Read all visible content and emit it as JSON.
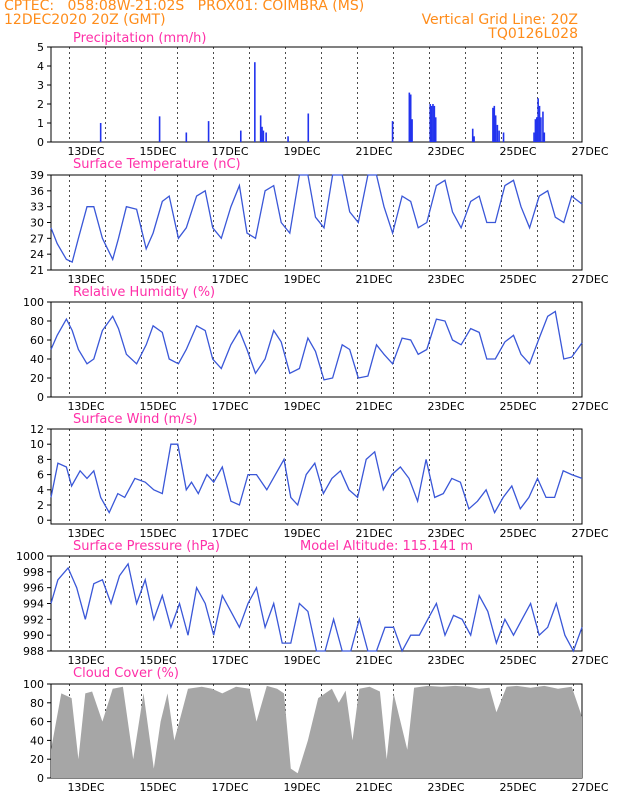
{
  "header": {
    "left1": "CPTEC:   058:08W-21:02S   PROX01: COIMBRA (MS)",
    "left2": "12DEC2020 20Z (GMT)",
    "right2": "Vertical Grid Line: 20Z",
    "right3": "TQ0126L028"
  },
  "colors": {
    "header": "#ff8c1a",
    "panel_title": "#ff2fa8",
    "series": "#3a57d8",
    "bars": "#2233ee",
    "cloud": "#a6a6a6"
  },
  "chart_data": [
    {
      "id": "precip",
      "type": "bar",
      "title": "Precipitation (mm/h)",
      "xlim": [
        0,
        15.5
      ],
      "ylim": [
        0,
        5
      ],
      "yticks": [
        0,
        1,
        2,
        3,
        4,
        5
      ],
      "xticklabels": [
        "13DEC",
        "15DEC",
        "17DEC",
        "19DEC",
        "21DEC",
        "23DEC",
        "25DEC",
        "27DEC"
      ],
      "bars": [
        [
          1.45,
          1.0
        ],
        [
          3.17,
          1.35
        ],
        [
          3.95,
          0.5
        ],
        [
          4.6,
          1.1
        ],
        [
          5.54,
          0.6
        ],
        [
          5.95,
          4.2
        ],
        [
          6.12,
          1.4
        ],
        [
          6.16,
          0.8
        ],
        [
          6.2,
          0.6
        ],
        [
          6.28,
          0.5
        ],
        [
          6.92,
          0.3
        ],
        [
          7.51,
          1.5
        ],
        [
          9.97,
          1.1
        ],
        [
          10.46,
          2.6
        ],
        [
          10.5,
          2.5
        ],
        [
          10.54,
          1.2
        ],
        [
          11.07,
          2.0
        ],
        [
          11.11,
          1.9
        ],
        [
          11.15,
          2.0
        ],
        [
          11.19,
          1.9
        ],
        [
          11.23,
          1.3
        ],
        [
          12.31,
          0.7
        ],
        [
          12.35,
          0.3
        ],
        [
          12.9,
          1.8
        ],
        [
          12.94,
          1.9
        ],
        [
          12.98,
          1.4
        ],
        [
          13.03,
          0.9
        ],
        [
          13.08,
          0.6
        ],
        [
          13.21,
          0.5
        ],
        [
          14.1,
          0.5
        ],
        [
          14.14,
          1.2
        ],
        [
          14.18,
          1.3
        ],
        [
          14.22,
          2.3
        ],
        [
          14.26,
          1.9
        ],
        [
          14.3,
          1.3
        ],
        [
          14.36,
          1.6
        ],
        [
          14.4,
          0.5
        ]
      ]
    },
    {
      "id": "temp",
      "type": "line",
      "title": "Surface Temperature (nC)",
      "xlim": [
        0,
        15.5
      ],
      "ylim": [
        21,
        39
      ],
      "yticks": [
        21,
        24,
        27,
        30,
        33,
        36,
        39
      ],
      "xticklabels": [
        "13DEC",
        "15DEC",
        "17DEC",
        "19DEC",
        "21DEC",
        "23DEC",
        "25DEC",
        "27DEC"
      ],
      "x": [
        0,
        0.18,
        0.45,
        0.62,
        0.8,
        1.05,
        1.25,
        1.5,
        1.8,
        1.97,
        2.2,
        2.5,
        2.78,
        2.98,
        3.25,
        3.45,
        3.72,
        3.95,
        4.25,
        4.5,
        4.72,
        4.97,
        5.25,
        5.5,
        5.72,
        5.97,
        6.25,
        6.5,
        6.72,
        6.97,
        7.25,
        7.5,
        7.72,
        7.97,
        8.22,
        8.5,
        8.72,
        8.97,
        9.25,
        9.5,
        9.72,
        9.97,
        10.25,
        10.5,
        10.72,
        10.97,
        11.25,
        11.5,
        11.72,
        11.97,
        12.25,
        12.5,
        12.72,
        12.97,
        13.25,
        13.5,
        13.72,
        13.97,
        14.25,
        14.5,
        14.72,
        14.97,
        15.2,
        15.5
      ],
      "y": [
        29,
        26,
        23,
        22.5,
        27,
        33,
        33,
        27,
        23,
        27,
        33,
        32.5,
        25,
        28,
        34,
        35,
        27,
        29,
        35,
        36,
        29,
        27,
        33,
        37,
        28,
        27,
        36,
        37,
        30,
        28,
        39,
        39,
        31,
        29,
        39,
        39,
        32,
        30,
        39,
        39,
        33,
        28,
        35,
        34,
        29,
        30,
        37,
        38,
        32,
        29,
        34,
        35,
        30,
        30,
        37,
        38,
        33,
        29,
        35,
        36,
        31,
        30,
        35,
        33.5
      ]
    },
    {
      "id": "rh",
      "type": "line",
      "title": "Relative Humidity (%)",
      "xlim": [
        0,
        15.5
      ],
      "ylim": [
        0,
        100
      ],
      "yticks": [
        0,
        20,
        40,
        60,
        80,
        100
      ],
      "xticklabels": [
        "13DEC",
        "15DEC",
        "17DEC",
        "19DEC",
        "21DEC",
        "23DEC",
        "25DEC",
        "27DEC"
      ],
      "x": [
        0,
        0.18,
        0.45,
        0.62,
        0.8,
        1.05,
        1.25,
        1.5,
        1.8,
        1.97,
        2.2,
        2.5,
        2.78,
        2.98,
        3.25,
        3.45,
        3.72,
        3.95,
        4.25,
        4.5,
        4.72,
        4.97,
        5.25,
        5.5,
        5.72,
        5.97,
        6.25,
        6.5,
        6.72,
        6.97,
        7.25,
        7.5,
        7.72,
        7.97,
        8.22,
        8.5,
        8.72,
        8.97,
        9.25,
        9.5,
        9.72,
        9.97,
        10.25,
        10.5,
        10.72,
        10.97,
        11.25,
        11.5,
        11.72,
        11.97,
        12.25,
        12.5,
        12.72,
        12.97,
        13.25,
        13.5,
        13.72,
        13.97,
        14.25,
        14.5,
        14.72,
        14.97,
        15.2,
        15.5
      ],
      "y": [
        50,
        65,
        82,
        70,
        50,
        35,
        40,
        70,
        85,
        72,
        45,
        35,
        55,
        75,
        68,
        40,
        35,
        50,
        75,
        70,
        40,
        30,
        55,
        70,
        50,
        25,
        40,
        70,
        58,
        25,
        30,
        62,
        48,
        18,
        20,
        55,
        50,
        20,
        22,
        55,
        45,
        35,
        62,
        60,
        45,
        50,
        82,
        80,
        60,
        55,
        72,
        68,
        40,
        40,
        58,
        65,
        45,
        35,
        62,
        85,
        90,
        40,
        42,
        57
      ]
    },
    {
      "id": "wind",
      "type": "line",
      "title": "Surface Wind (m/s)",
      "xlim": [
        0,
        15.5
      ],
      "ylim": [
        -0.5,
        12
      ],
      "yticks": [
        0,
        2,
        4,
        6,
        8,
        10,
        12
      ],
      "xticklabels": [
        "13DEC",
        "15DEC",
        "17DEC",
        "19DEC",
        "21DEC",
        "23DEC",
        "25DEC",
        "27DEC"
      ],
      "x": [
        0,
        0.2,
        0.45,
        0.6,
        0.85,
        1.05,
        1.25,
        1.45,
        1.7,
        1.95,
        2.15,
        2.45,
        2.75,
        3.0,
        3.25,
        3.5,
        3.7,
        3.95,
        4.1,
        4.3,
        4.55,
        4.75,
        5.0,
        5.25,
        5.5,
        5.75,
        6.0,
        6.3,
        6.55,
        6.8,
        7.0,
        7.2,
        7.45,
        7.7,
        7.95,
        8.2,
        8.45,
        8.7,
        8.95,
        9.2,
        9.45,
        9.7,
        9.95,
        10.2,
        10.45,
        10.7,
        10.95,
        11.2,
        11.45,
        11.7,
        11.95,
        12.2,
        12.45,
        12.7,
        12.95,
        13.2,
        13.45,
        13.7,
        13.95,
        14.2,
        14.45,
        14.7,
        14.95,
        15.2,
        15.5
      ],
      "y": [
        3,
        7.5,
        7,
        4.5,
        6.5,
        5.5,
        6.5,
        3,
        1,
        3.5,
        3,
        5.5,
        5,
        4,
        3.5,
        10,
        10,
        4,
        5,
        3.5,
        6,
        5,
        7,
        2.5,
        2,
        6,
        6,
        4,
        6,
        8,
        3,
        2,
        6,
        7.5,
        3.5,
        5.5,
        6.5,
        4,
        3,
        8,
        9,
        4,
        6,
        7,
        5.5,
        2.5,
        8,
        3,
        3.5,
        5.5,
        5,
        1.5,
        2.5,
        4,
        1,
        3,
        4.5,
        1.5,
        3,
        5.5,
        3,
        3,
        6.5,
        6,
        5.5
      ]
    },
    {
      "id": "pressure",
      "type": "line",
      "title": "Surface Pressure (hPa)",
      "annotation": "Model Altitude: 115.141 m",
      "xlim": [
        0,
        15.5
      ],
      "ylim": [
        988,
        1000
      ],
      "yticks": [
        988,
        990,
        992,
        994,
        996,
        998,
        1000
      ],
      "xticklabels": [
        "13DEC",
        "15DEC",
        "17DEC",
        "19DEC",
        "21DEC",
        "23DEC",
        "25DEC",
        "27DEC"
      ],
      "x": [
        0,
        0.2,
        0.5,
        0.75,
        1.0,
        1.25,
        1.5,
        1.75,
        2.0,
        2.25,
        2.5,
        2.75,
        3.0,
        3.25,
        3.5,
        3.75,
        4.0,
        4.25,
        4.5,
        4.75,
        5.0,
        5.25,
        5.5,
        5.75,
        6.0,
        6.25,
        6.5,
        6.75,
        7.0,
        7.25,
        7.5,
        7.75,
        8.0,
        8.25,
        8.5,
        8.75,
        9.0,
        9.25,
        9.5,
        9.75,
        10.0,
        10.25,
        10.5,
        10.75,
        11.0,
        11.25,
        11.5,
        11.75,
        12.0,
        12.25,
        12.5,
        12.75,
        13.0,
        13.25,
        13.5,
        13.75,
        14.0,
        14.25,
        14.5,
        14.75,
        15.0,
        15.25,
        15.5
      ],
      "y": [
        994,
        997,
        998.5,
        996,
        992,
        996.5,
        997,
        994,
        997.5,
        999,
        994,
        997,
        992,
        995,
        991,
        994,
        990,
        996,
        994,
        990,
        995,
        993,
        991,
        994,
        996,
        991,
        994,
        989,
        989,
        994,
        993,
        986,
        988,
        992,
        987.5,
        988,
        992,
        988,
        987,
        991,
        991,
        986,
        990,
        990,
        992,
        994,
        990,
        992.5,
        992,
        990,
        995,
        993,
        989,
        992,
        990,
        992,
        994,
        990,
        991,
        994,
        990,
        988,
        991
      ]
    },
    {
      "id": "cloud",
      "type": "area",
      "title": "Cloud Cover (%)",
      "xlim": [
        0,
        15.5
      ],
      "ylim": [
        0,
        100
      ],
      "yticks": [
        0,
        20,
        40,
        60,
        80,
        100
      ],
      "xticklabels": [
        "13DEC",
        "15DEC",
        "17DEC",
        "19DEC",
        "21DEC",
        "23DEC",
        "25DEC",
        "27DEC"
      ],
      "x": [
        0,
        0.3,
        0.6,
        0.8,
        1.0,
        1.2,
        1.5,
        1.8,
        2.1,
        2.4,
        2.7,
        3.0,
        3.2,
        3.4,
        3.6,
        4.0,
        4.4,
        4.7,
        5.0,
        5.4,
        5.8,
        6.0,
        6.3,
        6.6,
        6.8,
        7.0,
        7.2,
        7.5,
        7.8,
        8.0,
        8.2,
        8.4,
        8.6,
        8.8,
        9.0,
        9.3,
        9.6,
        9.8,
        10.0,
        10.4,
        10.6,
        10.8,
        11.0,
        11.4,
        11.8,
        12.2,
        12.5,
        12.8,
        13.0,
        13.3,
        13.6,
        14.0,
        14.4,
        14.8,
        15.2,
        15.5
      ],
      "y": [
        30,
        90,
        85,
        20,
        90,
        92,
        60,
        95,
        97,
        20,
        90,
        10,
        60,
        90,
        40,
        95,
        97,
        95,
        90,
        97,
        95,
        60,
        98,
        95,
        90,
        10,
        5,
        40,
        85,
        90,
        95,
        80,
        93,
        40,
        95,
        97,
        92,
        20,
        90,
        30,
        96,
        97,
        98,
        97,
        98,
        97,
        95,
        96,
        70,
        97,
        98,
        96,
        98,
        95,
        97,
        65
      ]
    }
  ]
}
